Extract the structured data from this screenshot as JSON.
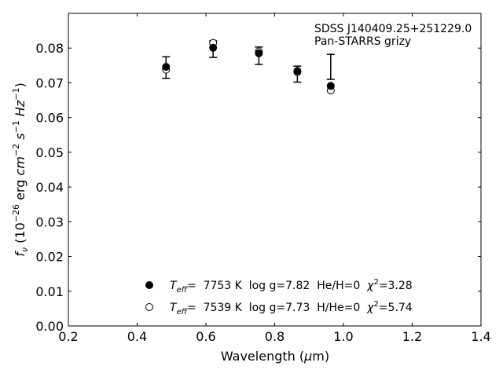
{
  "chart_data": {
    "type": "scatter",
    "xlabel_main": "Wavelength (",
    "xlabel_mu": "μ",
    "xlabel_unit": "m)",
    "ylabel_f": "f",
    "ylabel_nu": "ν",
    "ylabel_open": " (10",
    "ylabel_exp1": "−26",
    "ylabel_erg": " erg ",
    "ylabel_cm": "cm",
    "ylabel_exp2": "−2",
    "ylabel_s": " s",
    "ylabel_exp3": "−1",
    "ylabel_hz": " Hz",
    "ylabel_exp4": "−1",
    "ylabel_close": ")",
    "xlim": [
      0.2,
      1.4
    ],
    "ylim": [
      0.0,
      0.09
    ],
    "xticks": [
      "0.2",
      "0.4",
      "0.6",
      "0.8",
      "1.0",
      "1.2",
      "1.4"
    ],
    "yticks": [
      "0.00",
      "0.01",
      "0.02",
      "0.03",
      "0.04",
      "0.05",
      "0.06",
      "0.07",
      "0.08"
    ],
    "annotation_line1": "SDSS J140409.25+251229.0",
    "annotation_line2": "Pan-STARRS grizy",
    "observed": {
      "x": [
        0.484,
        0.621,
        0.754,
        0.866,
        0.963
      ],
      "y": [
        0.0744,
        0.0797,
        0.0778,
        0.0725,
        0.0746
      ],
      "yerr": [
        0.0031,
        0.0024,
        0.0025,
        0.0023,
        0.0036
      ]
    },
    "series": [
      {
        "marker": "filled-circle",
        "x": [
          0.484,
          0.621,
          0.754,
          0.866,
          0.963
        ],
        "y": [
          0.0746,
          0.0801,
          0.0785,
          0.0734,
          0.0691
        ],
        "legend": {
          "t": "T",
          "sub": "eff",
          "text": "=  7753 K  log g=7.82  He/H=0  ",
          "chi": "χ",
          "sup": "2",
          "chi_val": "=3.28"
        }
      },
      {
        "marker": "open-circle",
        "x": [
          0.484,
          0.621,
          0.754,
          0.866,
          0.963
        ],
        "y": [
          0.0738,
          0.0815,
          0.079,
          0.0731,
          0.0678
        ],
        "legend": {
          "t": "T",
          "sub": "eff",
          "text": "=  7539 K  log g=7.73  H/He=0  ",
          "chi": "χ",
          "sup": "2",
          "chi_val": "=5.74"
        }
      }
    ],
    "legend_position": "lower-center",
    "grid": false
  }
}
